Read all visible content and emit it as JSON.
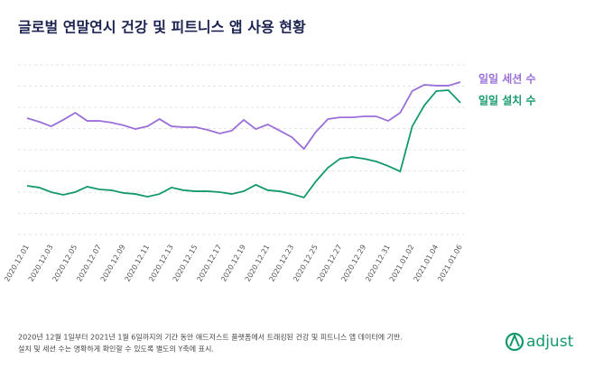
{
  "chart_data": {
    "type": "line",
    "title": "글로벌 연말연시 건강 및 피트니스 앱 사용 현황",
    "categories": [
      "2020.12.01",
      null,
      "2020.12.03",
      null,
      "2020.12.05",
      null,
      "2020.12.07",
      null,
      "2020.12.09",
      null,
      "2020.12.11",
      null,
      "2020.12.13",
      null,
      "2020.12.15",
      null,
      "2020.12.17",
      null,
      "2020.12.19",
      null,
      "2020.12.21",
      null,
      "2020.12.23",
      null,
      "2020.12.25",
      null,
      "2020.12.27",
      null,
      "2020.12.29",
      null,
      "2020.12.31",
      null,
      "2021.01.02",
      null,
      "2021.01.04",
      null,
      "2021.01.06"
    ],
    "ylim": [
      0,
      100
    ],
    "series": [
      {
        "name": "일일 세션 수",
        "color": "#9a6fd8",
        "values": [
          68.6,
          66.5,
          63.8,
          67.6,
          71.8,
          67.0,
          67.0,
          66.0,
          64.4,
          62.2,
          63.8,
          68.1,
          63.8,
          63.3,
          63.3,
          61.7,
          59.6,
          61.2,
          67.6,
          62.2,
          64.9,
          61.2,
          57.4,
          50.5,
          60.6,
          68.1,
          69.1,
          69.1,
          69.7,
          69.7,
          67.0,
          71.8,
          84.6,
          88.3,
          87.8,
          87.8,
          89.9
        ]
      },
      {
        "name": "일일 설치 수",
        "color": "#14996a",
        "values": [
          28.7,
          27.7,
          25.0,
          23.4,
          25.0,
          28.2,
          26.6,
          26.1,
          24.5,
          23.9,
          22.3,
          23.9,
          27.7,
          26.1,
          25.5,
          25.5,
          25.0,
          23.9,
          25.5,
          29.3,
          26.1,
          25.5,
          23.9,
          21.8,
          31.4,
          39.4,
          44.7,
          45.7,
          44.7,
          43.1,
          40.4,
          37.2,
          63.8,
          76.1,
          84.6,
          85.1,
          77.7
        ]
      }
    ],
    "notes": [
      "2020년 12월 1일부터 2021년 1월 6일까지의 기간 동안 애드저스트 플랫폼에서 트래킹된 건강 및 피트니스 앱 데이터에 기반.",
      "설치 및 세션 수는 명확하게 확인할 수 있도록 별도의 Y축에 표시."
    ],
    "logo": "adjust"
  }
}
